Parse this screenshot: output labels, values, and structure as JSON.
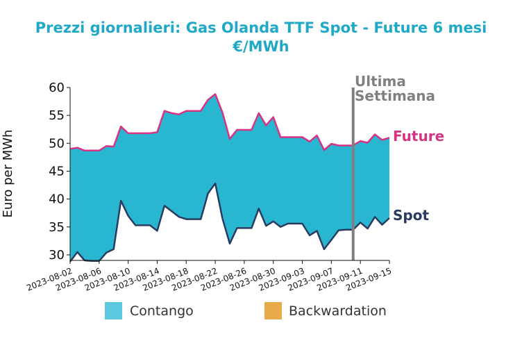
{
  "chart_data": {
    "type": "area",
    "title_line1": "Prezzi giornalieri: Gas Olanda TTF Spot - Future 6 mesi",
    "title_line2": "€/MWh",
    "ylabel": "Euro per MWh",
    "ylim": [
      29,
      60
    ],
    "yticks": [
      30,
      35,
      40,
      45,
      50,
      55,
      60
    ],
    "xlim": [
      "2023-08-02",
      "2023-09-15"
    ],
    "xticks": [
      "2023-08-02",
      "2023-08-06",
      "2023-08-10",
      "2023-08-14",
      "2023-08-18",
      "2023-08-22",
      "2023-08-26",
      "2023-08-30",
      "2023-09-03",
      "2023-09-07",
      "2023-09-11",
      "2023-09-15"
    ],
    "vline_date": "2023-09-10",
    "vline_label_1": "Ultima",
    "vline_label_2": "Settimana",
    "colors": {
      "contango": "#29b6d1",
      "backwardation": "#e8a948",
      "future": "#d63384",
      "spot": "#2a3b5f",
      "vline": "#808080",
      "title": "#1fa9c6"
    },
    "series": [
      {
        "name": "Future",
        "x": [
          "2023-08-02",
          "2023-08-03",
          "2023-08-04",
          "2023-08-05",
          "2023-08-06",
          "2023-08-07",
          "2023-08-08",
          "2023-08-09",
          "2023-08-10",
          "2023-08-11",
          "2023-08-12",
          "2023-08-13",
          "2023-08-14",
          "2023-08-15",
          "2023-08-16",
          "2023-08-17",
          "2023-08-18",
          "2023-08-19",
          "2023-08-20",
          "2023-08-21",
          "2023-08-22",
          "2023-08-23",
          "2023-08-24",
          "2023-08-25",
          "2023-08-26",
          "2023-08-27",
          "2023-08-28",
          "2023-08-29",
          "2023-08-30",
          "2023-08-31",
          "2023-09-01",
          "2023-09-02",
          "2023-09-03",
          "2023-09-04",
          "2023-09-05",
          "2023-09-06",
          "2023-09-07",
          "2023-09-08",
          "2023-09-09",
          "2023-09-10",
          "2023-09-11",
          "2023-09-12",
          "2023-09-13",
          "2023-09-14",
          "2023-09-15"
        ],
        "values": [
          49.0,
          49.2,
          48.7,
          48.7,
          48.7,
          49.5,
          49.4,
          53.0,
          51.8,
          51.8,
          51.8,
          51.8,
          52.0,
          55.8,
          55.4,
          55.2,
          55.8,
          55.8,
          55.8,
          57.8,
          58.8,
          55.5,
          50.8,
          52.4,
          52.4,
          52.4,
          55.4,
          53.2,
          54.7,
          51.1,
          51.1,
          51.1,
          51.1,
          50.3,
          51.4,
          48.8,
          49.9,
          49.6,
          49.6,
          49.6,
          50.4,
          50.1,
          51.6,
          50.6,
          51.0
        ]
      },
      {
        "name": "Spot",
        "x": [
          "2023-08-02",
          "2023-08-03",
          "2023-08-04",
          "2023-08-05",
          "2023-08-06",
          "2023-08-07",
          "2023-08-08",
          "2023-08-09",
          "2023-08-10",
          "2023-08-11",
          "2023-08-12",
          "2023-08-13",
          "2023-08-14",
          "2023-08-15",
          "2023-08-16",
          "2023-08-17",
          "2023-08-18",
          "2023-08-19",
          "2023-08-20",
          "2023-08-21",
          "2023-08-22",
          "2023-08-23",
          "2023-08-24",
          "2023-08-25",
          "2023-08-26",
          "2023-08-27",
          "2023-08-28",
          "2023-08-29",
          "2023-08-30",
          "2023-08-31",
          "2023-09-01",
          "2023-09-02",
          "2023-09-03",
          "2023-09-04",
          "2023-09-05",
          "2023-09-06",
          "2023-09-07",
          "2023-09-08",
          "2023-09-09",
          "2023-09-10",
          "2023-09-11",
          "2023-09-12",
          "2023-09-13",
          "2023-09-14",
          "2023-09-15"
        ],
        "values": [
          28.8,
          30.5,
          29.0,
          28.9,
          28.9,
          30.4,
          31.0,
          39.7,
          37.0,
          35.3,
          35.3,
          35.3,
          34.3,
          38.8,
          37.8,
          36.8,
          36.4,
          36.4,
          36.4,
          41.0,
          42.8,
          36.5,
          32.0,
          34.8,
          34.8,
          34.8,
          38.3,
          35.2,
          36.0,
          35.0,
          35.6,
          35.6,
          35.6,
          33.5,
          34.3,
          31.0,
          32.7,
          34.4,
          34.5,
          34.5,
          35.8,
          34.7,
          36.8,
          35.4,
          36.6
        ]
      }
    ],
    "legend": [
      {
        "label": "Contango",
        "color": "#5bc8e0"
      },
      {
        "label": "Backwardation",
        "color": "#e8a948"
      }
    ]
  }
}
